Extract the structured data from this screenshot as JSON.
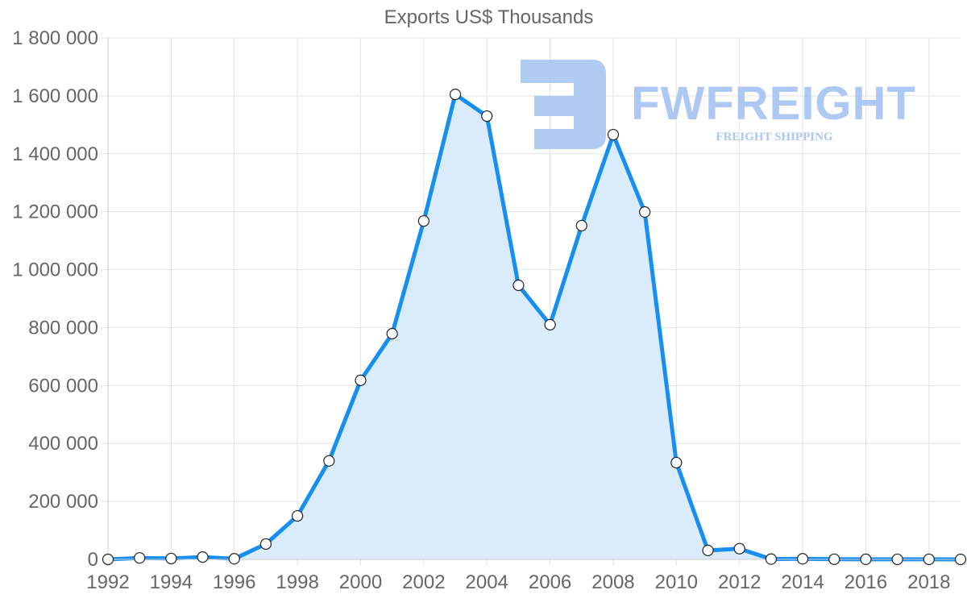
{
  "chart_data": {
    "type": "area",
    "title": "Exports US$ Thousands",
    "xlabel": "",
    "ylabel": "",
    "ylim": [
      0,
      1800000
    ],
    "y_ticks": [
      0,
      200000,
      400000,
      600000,
      800000,
      1000000,
      1200000,
      1400000,
      1600000,
      1800000
    ],
    "y_tick_labels": [
      "0",
      "200 000",
      "400 000",
      "600 000",
      "800 000",
      "1 000 000",
      "1 200 000",
      "1 400 000",
      "1 600 000",
      "1 800 000"
    ],
    "x_tick_labels": [
      "1992",
      "1994",
      "1996",
      "1998",
      "2000",
      "2002",
      "2004",
      "2006",
      "2008",
      "2010",
      "2012",
      "2014",
      "2016",
      "2018"
    ],
    "grid": true,
    "legend": null,
    "x": [
      1992,
      1993,
      1994,
      1995,
      1996,
      1997,
      1998,
      1999,
      2000,
      2001,
      2002,
      2003,
      2004,
      2005,
      2006,
      2007,
      2008,
      2009,
      2010,
      2011,
      2012,
      2013,
      2014,
      2015,
      2016,
      2017,
      2018,
      2019
    ],
    "series": [
      {
        "name": "Exports US$ Thousands",
        "color": "#168ff0",
        "fill": "#d8ebfb",
        "values": [
          0,
          5000,
          3000,
          8000,
          2000,
          53000,
          150000,
          340000,
          618000,
          779000,
          1168000,
          1605000,
          1530000,
          946000,
          810000,
          1152000,
          1466000,
          1199000,
          334000,
          31000,
          37000,
          1000,
          2000,
          500,
          300,
          200,
          200,
          100
        ]
      }
    ]
  },
  "watermark": {
    "brand": "FWFREIGHT",
    "tagline": "FREIGHT SHIPPING",
    "color": "#a9c6f2"
  }
}
